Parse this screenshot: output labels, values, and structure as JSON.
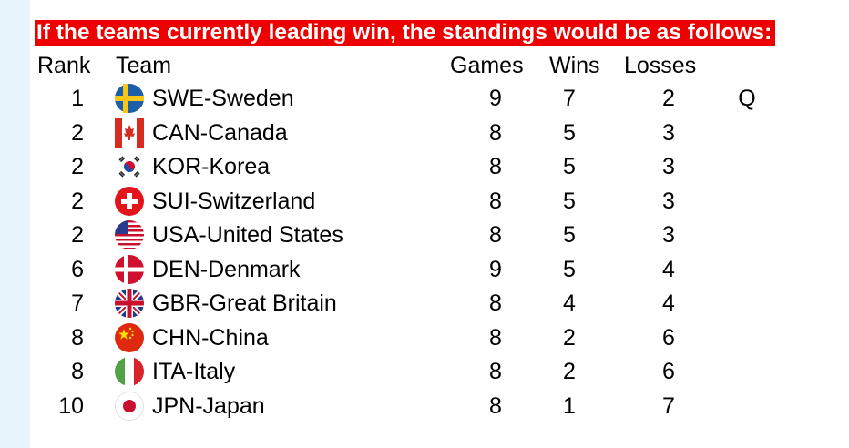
{
  "banner": "If the teams currently leading win, the standings would be as follows:",
  "headers": {
    "rank": "Rank",
    "team": "Team",
    "games": "Games",
    "wins": "Wins",
    "losses": "Losses"
  },
  "rows": [
    {
      "rank": "1",
      "team": "SWE-Sweden",
      "flag": "sweden-flag-icon",
      "games": "9",
      "wins": "7",
      "losses": "2",
      "q": "Q"
    },
    {
      "rank": "2",
      "team": "CAN-Canada",
      "flag": "canada-flag-icon",
      "games": "8",
      "wins": "5",
      "losses": "3",
      "q": ""
    },
    {
      "rank": "2",
      "team": "KOR-Korea",
      "flag": "korea-flag-icon",
      "games": "8",
      "wins": "5",
      "losses": "3",
      "q": ""
    },
    {
      "rank": "2",
      "team": "SUI-Switzerland",
      "flag": "switzerland-flag-icon",
      "games": "8",
      "wins": "5",
      "losses": "3",
      "q": ""
    },
    {
      "rank": "2",
      "team": "USA-United States",
      "flag": "usa-flag-icon",
      "games": "8",
      "wins": "5",
      "losses": "3",
      "q": ""
    },
    {
      "rank": "6",
      "team": "DEN-Denmark",
      "flag": "denmark-flag-icon",
      "games": "9",
      "wins": "5",
      "losses": "4",
      "q": ""
    },
    {
      "rank": "7",
      "team": "GBR-Great Britain",
      "flag": "great-britain-flag-icon",
      "games": "8",
      "wins": "4",
      "losses": "4",
      "q": ""
    },
    {
      "rank": "8",
      "team": "CHN-China",
      "flag": "china-flag-icon",
      "games": "8",
      "wins": "2",
      "losses": "6",
      "q": ""
    },
    {
      "rank": "8",
      "team": "ITA-Italy",
      "flag": "italy-flag-icon",
      "games": "8",
      "wins": "2",
      "losses": "6",
      "q": ""
    },
    {
      "rank": "10",
      "team": "JPN-Japan",
      "flag": "japan-flag-icon",
      "games": "8",
      "wins": "1",
      "losses": "7",
      "q": ""
    }
  ],
  "colors": {
    "banner_bg": "#ee0000",
    "banner_text": "#ffffff",
    "left_strip": "#e8f4fc"
  }
}
